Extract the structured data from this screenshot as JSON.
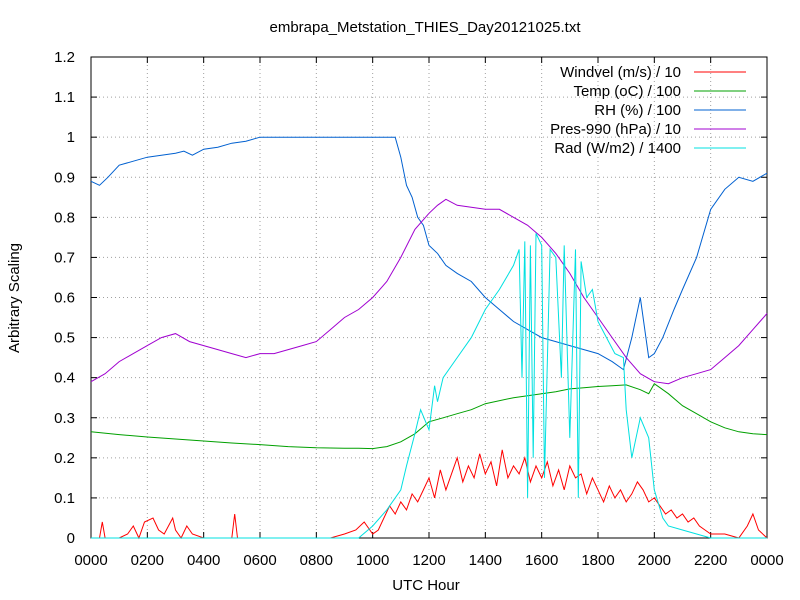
{
  "chart_data": {
    "type": "line",
    "title": "embrapa_Metstation_THIES_Day20121025.txt",
    "xlabel": "UTC Hour",
    "ylabel": "Arbitrary Scaling",
    "xlim": [
      0,
      24
    ],
    "ylim": [
      0,
      1.2
    ],
    "grid": true,
    "legend_position": "top-right",
    "x_ticks": [
      {
        "value": 0,
        "label": "0000"
      },
      {
        "value": 2,
        "label": "0200"
      },
      {
        "value": 4,
        "label": "0400"
      },
      {
        "value": 6,
        "label": "0600"
      },
      {
        "value": 8,
        "label": "0800"
      },
      {
        "value": 10,
        "label": "1000"
      },
      {
        "value": 12,
        "label": "1200"
      },
      {
        "value": 14,
        "label": "1400"
      },
      {
        "value": 16,
        "label": "1600"
      },
      {
        "value": 18,
        "label": "1800"
      },
      {
        "value": 20,
        "label": "2000"
      },
      {
        "value": 22,
        "label": "2200"
      },
      {
        "value": 24,
        "label": "0000"
      }
    ],
    "y_ticks": [
      {
        "value": 0,
        "label": "0"
      },
      {
        "value": 0.1,
        "label": "0.1"
      },
      {
        "value": 0.2,
        "label": "0.2"
      },
      {
        "value": 0.3,
        "label": "0.3"
      },
      {
        "value": 0.4,
        "label": "0.4"
      },
      {
        "value": 0.5,
        "label": "0.5"
      },
      {
        "value": 0.6,
        "label": "0.6"
      },
      {
        "value": 0.7,
        "label": "0.7"
      },
      {
        "value": 0.8,
        "label": "0.8"
      },
      {
        "value": 0.9,
        "label": "0.9"
      },
      {
        "value": 1.0,
        "label": "1"
      },
      {
        "value": 1.1,
        "label": "1.1"
      },
      {
        "value": 1.2,
        "label": "1.2"
      }
    ],
    "series": [
      {
        "name": "Windvel (m/s) / 10",
        "color": "#ff0000",
        "x": [
          0,
          0.3,
          0.4,
          0.5,
          1.0,
          1.3,
          1.5,
          1.7,
          1.9,
          2.2,
          2.4,
          2.6,
          2.9,
          3.0,
          3.2,
          3.4,
          3.6,
          4.0,
          4.5,
          5.0,
          5.1,
          5.2,
          5.5,
          6.0,
          7.0,
          8.0,
          8.5,
          9.0,
          9.4,
          9.7,
          10.0,
          10.2,
          10.4,
          10.6,
          10.8,
          11.0,
          11.2,
          11.4,
          11.6,
          11.8,
          12.0,
          12.2,
          12.4,
          12.6,
          12.8,
          13.0,
          13.2,
          13.4,
          13.6,
          13.8,
          14.0,
          14.2,
          14.4,
          14.6,
          14.8,
          15.0,
          15.2,
          15.4,
          15.6,
          15.8,
          16.0,
          16.2,
          16.4,
          16.6,
          16.8,
          17.0,
          17.2,
          17.4,
          17.6,
          17.8,
          18.0,
          18.2,
          18.4,
          18.6,
          18.8,
          19.0,
          19.2,
          19.4,
          19.6,
          19.8,
          20.0,
          20.2,
          20.4,
          20.6,
          20.8,
          21.0,
          21.2,
          21.4,
          21.6,
          21.8,
          22.0,
          22.5,
          23.0,
          23.3,
          23.5,
          23.7,
          24.0
        ],
        "values": [
          0,
          0,
          0.04,
          0,
          0,
          0.01,
          0.03,
          0,
          0.04,
          0.05,
          0.02,
          0.01,
          0.05,
          0.02,
          0,
          0.03,
          0.01,
          0,
          0,
          0,
          0.06,
          0,
          0,
          0,
          0,
          0,
          0,
          0.01,
          0.02,
          0.04,
          0.01,
          0.02,
          0.05,
          0.08,
          0.06,
          0.09,
          0.07,
          0.11,
          0.09,
          0.12,
          0.15,
          0.1,
          0.17,
          0.12,
          0.16,
          0.2,
          0.14,
          0.18,
          0.15,
          0.21,
          0.16,
          0.19,
          0.13,
          0.22,
          0.15,
          0.18,
          0.16,
          0.2,
          0.14,
          0.18,
          0.15,
          0.19,
          0.13,
          0.17,
          0.12,
          0.18,
          0.15,
          0.16,
          0.11,
          0.15,
          0.12,
          0.09,
          0.13,
          0.1,
          0.12,
          0.09,
          0.11,
          0.14,
          0.12,
          0.09,
          0.1,
          0.08,
          0.06,
          0.07,
          0.05,
          0.06,
          0.04,
          0.05,
          0.03,
          0.02,
          0.01,
          0.01,
          0,
          0.03,
          0.06,
          0.02,
          0
        ]
      },
      {
        "name": "Temp (oC) / 100",
        "color": "#00a000",
        "x": [
          0,
          1,
          2,
          3,
          4,
          5,
          6,
          7,
          8,
          9,
          9.5,
          10,
          10.5,
          11,
          11.5,
          12,
          12.5,
          13,
          13.5,
          14,
          15,
          15.5,
          16,
          16.5,
          17,
          17.5,
          18,
          18.5,
          19,
          19.5,
          19.8,
          20.0,
          20.2,
          20.5,
          21,
          21.5,
          22,
          22.5,
          23,
          23.5,
          24
        ],
        "values": [
          0.265,
          0.258,
          0.252,
          0.247,
          0.242,
          0.237,
          0.233,
          0.228,
          0.225,
          0.224,
          0.224,
          0.223,
          0.228,
          0.24,
          0.26,
          0.29,
          0.3,
          0.31,
          0.32,
          0.335,
          0.35,
          0.355,
          0.36,
          0.365,
          0.372,
          0.375,
          0.378,
          0.38,
          0.382,
          0.37,
          0.36,
          0.385,
          0.375,
          0.36,
          0.33,
          0.31,
          0.29,
          0.275,
          0.265,
          0.26,
          0.258
        ]
      },
      {
        "name": "RH (%) / 100",
        "color": "#0060d0",
        "x": [
          0,
          0.3,
          0.6,
          1.0,
          1.5,
          2.0,
          2.5,
          3.0,
          3.3,
          3.6,
          4.0,
          4.5,
          5.0,
          5.5,
          6.0,
          7.0,
          8.0,
          9.0,
          10.0,
          10.8,
          11.0,
          11.2,
          11.4,
          11.6,
          11.8,
          12.0,
          12.3,
          12.6,
          13.0,
          13.5,
          14.0,
          14.5,
          15.0,
          15.5,
          16.0,
          16.5,
          17.0,
          17.5,
          18.0,
          18.5,
          18.9,
          19.2,
          19.5,
          19.8,
          20.0,
          20.3,
          20.7,
          21.0,
          21.5,
          22.0,
          22.5,
          23.0,
          23.5,
          24.0
        ],
        "values": [
          0.89,
          0.88,
          0.9,
          0.93,
          0.94,
          0.95,
          0.955,
          0.96,
          0.965,
          0.955,
          0.97,
          0.975,
          0.985,
          0.99,
          1.0,
          1.0,
          1.0,
          1.0,
          1.0,
          1.0,
          0.95,
          0.88,
          0.85,
          0.8,
          0.78,
          0.73,
          0.71,
          0.68,
          0.66,
          0.64,
          0.6,
          0.57,
          0.54,
          0.52,
          0.5,
          0.49,
          0.48,
          0.47,
          0.46,
          0.44,
          0.42,
          0.5,
          0.6,
          0.45,
          0.46,
          0.5,
          0.57,
          0.62,
          0.7,
          0.82,
          0.87,
          0.9,
          0.89,
          0.91
        ]
      },
      {
        "name": "Pres-990 (hPa) / 10",
        "color": "#a000d0",
        "x": [
          0,
          0.5,
          1.0,
          1.5,
          2.0,
          2.5,
          3.0,
          3.5,
          4.0,
          4.5,
          5.0,
          5.5,
          6.0,
          6.5,
          7.0,
          7.5,
          8.0,
          8.5,
          9.0,
          9.5,
          10.0,
          10.5,
          11.0,
          11.5,
          12.0,
          12.3,
          12.6,
          13.0,
          14.0,
          14.5,
          15.0,
          15.5,
          16.0,
          16.5,
          17.0,
          17.5,
          18.0,
          18.5,
          19.0,
          19.5,
          20.0,
          20.5,
          21.0,
          21.5,
          22.0,
          22.5,
          23.0,
          23.5,
          24.0
        ],
        "values": [
          0.39,
          0.41,
          0.44,
          0.46,
          0.48,
          0.5,
          0.51,
          0.49,
          0.48,
          0.47,
          0.46,
          0.45,
          0.46,
          0.46,
          0.47,
          0.48,
          0.49,
          0.52,
          0.55,
          0.57,
          0.6,
          0.64,
          0.7,
          0.77,
          0.81,
          0.83,
          0.845,
          0.83,
          0.82,
          0.82,
          0.8,
          0.78,
          0.75,
          0.71,
          0.66,
          0.6,
          0.55,
          0.5,
          0.45,
          0.41,
          0.39,
          0.385,
          0.4,
          0.41,
          0.42,
          0.45,
          0.48,
          0.52,
          0.56
        ]
      },
      {
        "name": "Rad (W/m2) / 1400",
        "color": "#00e0e0",
        "x": [
          0,
          9.5,
          10.0,
          10.5,
          11.0,
          11.2,
          11.5,
          11.7,
          12.0,
          12.2,
          12.3,
          12.5,
          13.0,
          13.5,
          14.0,
          14.5,
          15.0,
          15.2,
          15.3,
          15.4,
          15.5,
          15.6,
          15.7,
          15.8,
          16.0,
          16.1,
          16.3,
          16.5,
          16.7,
          16.8,
          17.0,
          17.2,
          17.3,
          17.4,
          17.6,
          17.8,
          18.0,
          18.3,
          18.6,
          18.9,
          19.0,
          19.2,
          19.5,
          19.8,
          20.0,
          20.3,
          20.5,
          21.0,
          21.5,
          22.0,
          24.0
        ],
        "values": [
          0,
          0,
          0.03,
          0.07,
          0.12,
          0.18,
          0.26,
          0.32,
          0.27,
          0.38,
          0.34,
          0.4,
          0.45,
          0.5,
          0.57,
          0.62,
          0.68,
          0.72,
          0.4,
          0.74,
          0.1,
          0.73,
          0.2,
          0.76,
          0.73,
          0.15,
          0.72,
          0.7,
          0.4,
          0.73,
          0.25,
          0.72,
          0.1,
          0.69,
          0.6,
          0.62,
          0.54,
          0.5,
          0.46,
          0.45,
          0.32,
          0.2,
          0.3,
          0.25,
          0.12,
          0.05,
          0.03,
          0.02,
          0.01,
          0,
          0
        ]
      }
    ]
  }
}
